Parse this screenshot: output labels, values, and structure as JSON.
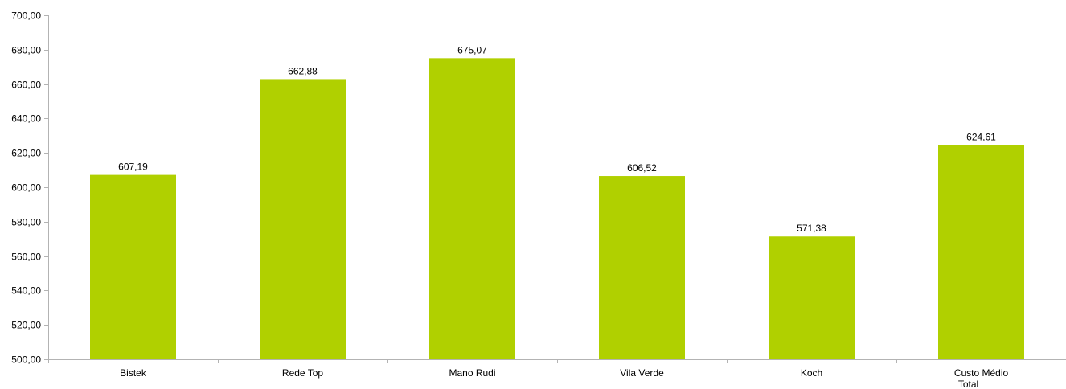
{
  "chart_data": {
    "type": "bar",
    "categories": [
      "Bistek",
      "Rede Top",
      "Mano Rudi",
      "Vila Verde",
      "Koch",
      "Custo Médio Total"
    ],
    "values": [
      607.19,
      662.88,
      675.07,
      606.52,
      571.38,
      624.61
    ],
    "value_labels": [
      "607,19",
      "662,88",
      "675,07",
      "606,52",
      "571,38",
      "624,61"
    ],
    "y_ticks": [
      "500,00",
      "520,00",
      "540,00",
      "560,00",
      "580,00",
      "600,00",
      "620,00",
      "640,00",
      "660,00",
      "680,00",
      "700,00"
    ],
    "ylim": [
      500,
      700
    ],
    "grid": false,
    "legend": "none",
    "bar_color": "#b0d000",
    "axis_color": "#b3b3b3"
  }
}
